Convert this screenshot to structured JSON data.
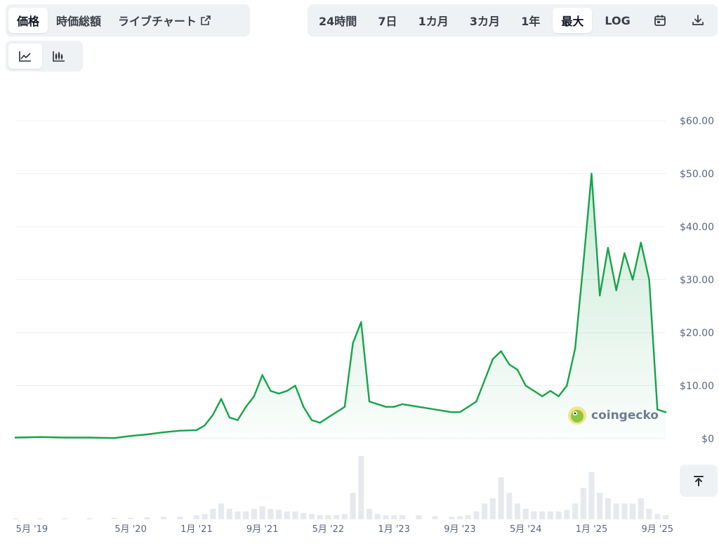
{
  "tabs_left": [
    {
      "label": "価格",
      "active": true
    },
    {
      "label": "時価総額",
      "active": false
    },
    {
      "label": "ライブチャート",
      "active": false,
      "external": true
    }
  ],
  "tabs_right": [
    {
      "label": "24時間",
      "active": false
    },
    {
      "label": "7日",
      "active": false
    },
    {
      "label": "1カ月",
      "active": false
    },
    {
      "label": "3カ月",
      "active": false
    },
    {
      "label": "1年",
      "active": false
    },
    {
      "label": "最大",
      "active": true
    },
    {
      "label": "LOG",
      "active": false
    }
  ],
  "toolbar_icons": [
    "calendar-icon",
    "download-icon"
  ],
  "chart_type_buttons": [
    {
      "icon": "line-chart-icon",
      "active": true
    },
    {
      "icon": "candlestick-icon",
      "active": false
    }
  ],
  "watermark": {
    "text": "coingecko",
    "icon": "gecko-logo"
  },
  "colors": {
    "line": "#16a34a",
    "volume": "#e6e9ee",
    "grid": "#eceff2",
    "accent": "#0d1421"
  },
  "chart_data": {
    "type": "line",
    "ylim": [
      0,
      60
    ],
    "y_ticks": [
      "$60.00",
      "$50.00",
      "$40.00",
      "$30.00",
      "$20.00",
      "$10.00",
      "$0"
    ],
    "x_ticks": [
      "5月 '19",
      "5月 '20",
      "1月 '21",
      "9月 '21",
      "5月 '22",
      "1月 '23",
      "9月 '23",
      "5月 '24",
      "1月 '25",
      "9月 '25"
    ],
    "grid": true,
    "series": [
      {
        "x": [
          "2019-03",
          "2019-06",
          "2019-09",
          "2019-12",
          "2020-03",
          "2020-05",
          "2020-07",
          "2020-09",
          "2020-11",
          "2021-01",
          "2021-02",
          "2021-03",
          "2021-04",
          "2021-05",
          "2021-06",
          "2021-07",
          "2021-08",
          "2021-09",
          "2021-10",
          "2021-11",
          "2021-12",
          "2022-01",
          "2022-02",
          "2022-03",
          "2022-04",
          "2022-05",
          "2022-06",
          "2022-07",
          "2022-08",
          "2022-09",
          "2022-10",
          "2022-11",
          "2022-12",
          "2023-01",
          "2023-02",
          "2023-04",
          "2023-06",
          "2023-08",
          "2023-09",
          "2023-10",
          "2023-11",
          "2023-12",
          "2024-01",
          "2024-02",
          "2024-03",
          "2024-04",
          "2024-05",
          "2024-06",
          "2024-07",
          "2024-08",
          "2024-09",
          "2024-10",
          "2024-11",
          "2024-12",
          "2025-01",
          "2025-02",
          "2025-03",
          "2025-04",
          "2025-05",
          "2025-06",
          "2025-07",
          "2025-08",
          "2025-09",
          "2025-10"
        ],
        "y": [
          0.2,
          0.3,
          0.2,
          0.2,
          0.1,
          0.5,
          0.8,
          1.2,
          1.5,
          1.6,
          2.5,
          4.5,
          7.5,
          4.0,
          3.5,
          6.0,
          8.0,
          12.0,
          9.0,
          8.5,
          9.0,
          10.0,
          6.0,
          3.5,
          3.0,
          4.0,
          5.0,
          6.0,
          18.0,
          22.0,
          7.0,
          6.5,
          6.0,
          6.0,
          6.5,
          6.0,
          5.5,
          5.0,
          5.0,
          6.0,
          7.0,
          11.0,
          15.0,
          16.5,
          14.0,
          13.0,
          10.0,
          9.0,
          8.0,
          9.0,
          8.0,
          10.0,
          17.0,
          33.0,
          50.0,
          27.0,
          36.0,
          28.0,
          35.0,
          30.0,
          37.0,
          30.0,
          5.5,
          5.0
        ]
      }
    ],
    "volume": [
      0.2,
      0.2,
      0.2,
      0.2,
      0.3,
      0.3,
      0.4,
      0.5,
      0.5,
      0.8,
      1.0,
      2.0,
      3.0,
      2.0,
      1.5,
      1.5,
      2.0,
      2.5,
      2.0,
      1.8,
      1.5,
      1.5,
      1.2,
      1.0,
      0.8,
      0.8,
      0.8,
      1.0,
      5.0,
      12.0,
      2.0,
      1.0,
      0.8,
      0.8,
      0.8,
      0.8,
      0.6,
      0.5,
      0.6,
      0.8,
      1.5,
      3.0,
      4.0,
      8.0,
      5.0,
      3.0,
      2.0,
      1.5,
      1.5,
      1.5,
      1.5,
      1.8,
      3.0,
      6.0,
      9.0,
      5.0,
      4.0,
      3.0,
      3.0,
      3.0,
      4.0,
      2.0,
      1.0,
      0.8
    ]
  }
}
